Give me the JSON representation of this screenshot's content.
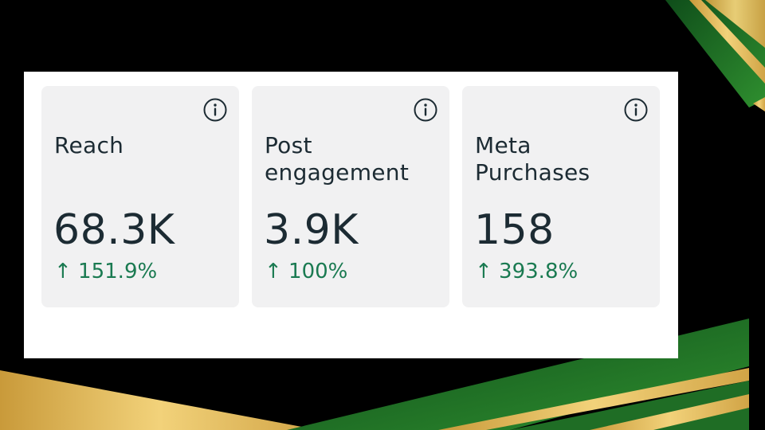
{
  "colors": {
    "background": "#000000",
    "panel": "#ffffff",
    "card": "#f1f1f2",
    "text": "#1c2b33",
    "positive": "#1a7a51",
    "accent_green": "#1e7a2a",
    "accent_gold": "#e4bd5d"
  },
  "metrics": [
    {
      "title": "Reach",
      "value": "68.3K",
      "change": "↑ 151.9%",
      "icon": "info-icon"
    },
    {
      "title": "Post engagement",
      "value": "3.9K",
      "change": "↑ 100%",
      "icon": "info-icon"
    },
    {
      "title": "Meta Purchases",
      "value": "158",
      "change": "↑ 393.8%",
      "icon": "info-icon"
    }
  ]
}
